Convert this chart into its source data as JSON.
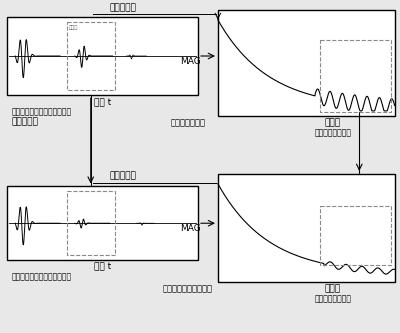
{
  "bg_color": "#e8e8e8",
  "panel_bg": "#ffffff",
  "label_top_time": "時間 t",
  "label_top_sub1": "インパルス応答　時系列波形",
  "label_top_sub2": "振幅の減衰",
  "label_top_surface": "アクリル板素面",
  "label_top_freq": "周波数",
  "label_top_power": "パワースペクトル",
  "label_top_mag": "MAG",
  "label_top_arrow": "反射音分離",
  "label_bot_time": "時間 t",
  "label_bot_sub1": "インパルス応答　時系列波形",
  "label_bot_surface": "アクリルの表面処理後",
  "label_bot_freq": "周波数",
  "label_bot_power": "パワースペクトル",
  "label_bot_mag": "MAG",
  "label_bot_arrow": "反射音分離"
}
